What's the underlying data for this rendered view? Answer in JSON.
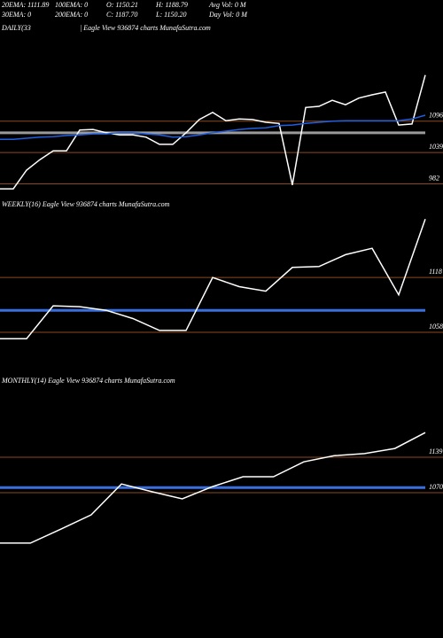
{
  "header": {
    "line1": [
      "20EMA: 1111.89",
      "100EMA: 0",
      "O: 1150.21",
      "H: 1188.79",
      "Avg Vol: 0  M"
    ],
    "line2": [
      "30EMA: 0",
      "200EMA: 0",
      "C: 1187.70",
      "L: 1150.20",
      "Day Vol: 0  M"
    ]
  },
  "chart_data": [
    {
      "type": "line",
      "title": "DAILY(33",
      "subtitle": "| Eagle  View  936874  charts MunafaSutra.com",
      "ylim": [
        970,
        1260
      ],
      "yticks": [
        1096,
        1039,
        982
      ],
      "tick_color": "#8b4a1c",
      "levels": [
        {
          "value": 1075,
          "color": "#9a9a9a"
        }
      ],
      "series": [
        {
          "color": "#ffffff",
          "values": [
            973,
            973,
            1007,
            1026,
            1042,
            1042,
            1080,
            1081,
            1075,
            1071,
            1071,
            1067,
            1054,
            1054,
            1075,
            1099,
            1112,
            1097,
            1100,
            1099,
            1094,
            1092,
            980,
            1121,
            1123,
            1134,
            1126,
            1138,
            1144,
            1149,
            1089,
            1091,
            1180
          ]
        },
        {
          "color": "#1f5fe0",
          "values": [
            1063,
            1063,
            1065,
            1067,
            1068,
            1070,
            1071,
            1073,
            1073,
            1075,
            1075,
            1073,
            1071,
            1067,
            1068,
            1071,
            1075,
            1078,
            1081,
            1083,
            1084,
            1088,
            1089,
            1092,
            1094,
            1096,
            1097,
            1097,
            1097,
            1097,
            1097,
            1100,
            1107
          ]
        }
      ]
    },
    {
      "type": "line",
      "title": "WEEKLY(16) Eagle  View  936874  charts MunafaSutra.com",
      "ylim": [
        1024,
        1189
      ],
      "yticks": [
        1118,
        1058
      ],
      "tick_color": "#8b4a1c",
      "levels": [
        {
          "value": 1082,
          "color": "#3a6fe0"
        }
      ],
      "series": [
        {
          "color": "#ffffff",
          "values": [
            1051,
            1051,
            1087,
            1086,
            1082,
            1073,
            1060,
            1060,
            1118,
            1108,
            1103,
            1129,
            1130,
            1143,
            1150,
            1099,
            1182
          ]
        }
      ]
    },
    {
      "type": "line",
      "title": "MONTHLY(14) Eagle  View  936874  charts MunafaSutra.com",
      "ylim": [
        796,
        1270
      ],
      "yticks": [
        1139,
        1070
      ],
      "tick_color": "#8b4a1c",
      "levels": [
        {
          "value": 1080,
          "color": "#3a6fe0"
        }
      ],
      "series": [
        {
          "color": "#ffffff",
          "values": [
            972,
            972,
            999,
            1027,
            1087,
            1072,
            1058,
            1082,
            1101,
            1101,
            1130,
            1142,
            1146,
            1156,
            1187
          ]
        }
      ]
    }
  ]
}
